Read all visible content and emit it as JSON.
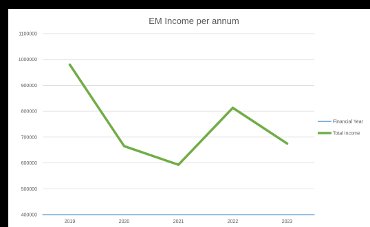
{
  "chart_data": {
    "type": "line",
    "title": "EM Income per annum",
    "xlabel": "",
    "ylabel": "",
    "categories": [
      "2019",
      "2020",
      "2021",
      "2022",
      "2023"
    ],
    "ylim": [
      400000,
      1100000
    ],
    "yticks": [
      "1100000",
      "1000000",
      "900000",
      "800000",
      "700000",
      "600000",
      "500000",
      "400000"
    ],
    "grid": true,
    "legend_position": "right",
    "series": [
      {
        "name": "Financial Year",
        "color": "#5b9bd5",
        "values": [
          2019,
          2020,
          2021,
          2022,
          2023
        ]
      },
      {
        "name": "Total Income",
        "color": "#70ad47",
        "values": [
          980000,
          665000,
          593000,
          813000,
          675000
        ]
      }
    ]
  }
}
